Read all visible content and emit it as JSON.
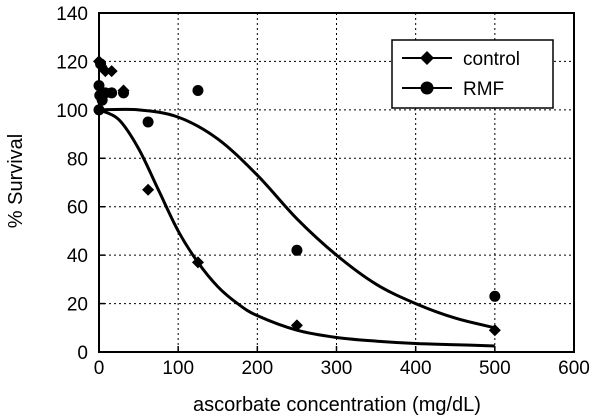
{
  "chart_data": {
    "type": "scatter",
    "xlabel": "ascorbate concentration  (mg/dL)",
    "ylabel": "% Survival",
    "xlim": [
      0,
      600
    ],
    "ylim": [
      0,
      140
    ],
    "x_ticks": [
      0,
      100,
      200,
      300,
      400,
      500,
      600
    ],
    "y_ticks": [
      0,
      20,
      40,
      60,
      80,
      100,
      120,
      140
    ],
    "x_tick_labels": [
      "0",
      "100",
      "200",
      "300",
      "400",
      "500",
      "600"
    ],
    "y_tick_labels": [
      "0",
      "20",
      "40",
      "60",
      "80",
      "100",
      "120",
      "140"
    ],
    "grid": true,
    "legend_position": "top-right",
    "series": [
      {
        "name": "control",
        "marker": "diamond",
        "points": [
          {
            "x": 0,
            "y": 120
          },
          {
            "x": 3,
            "y": 118
          },
          {
            "x": 8,
            "y": 116
          },
          {
            "x": 16,
            "y": 116
          },
          {
            "x": 31,
            "y": 108
          },
          {
            "x": 62,
            "y": 67
          },
          {
            "x": 125,
            "y": 37
          },
          {
            "x": 250,
            "y": 11
          },
          {
            "x": 500,
            "y": 9
          }
        ],
        "fit": [
          [
            0,
            100
          ],
          [
            25,
            96
          ],
          [
            50,
            84
          ],
          [
            75,
            67
          ],
          [
            100,
            50
          ],
          [
            125,
            37
          ],
          [
            150,
            27
          ],
          [
            175,
            20
          ],
          [
            200,
            15
          ],
          [
            250,
            9
          ],
          [
            300,
            6
          ],
          [
            350,
            4.5
          ],
          [
            400,
            3.5
          ],
          [
            450,
            3
          ],
          [
            500,
            2.5
          ]
        ]
      },
      {
        "name": "RMF",
        "marker": "circle",
        "points": [
          {
            "x": 0,
            "y": 100
          },
          {
            "x": 0,
            "y": 110
          },
          {
            "x": 1,
            "y": 106
          },
          {
            "x": 2,
            "y": 119
          },
          {
            "x": 4,
            "y": 104
          },
          {
            "x": 8,
            "y": 107
          },
          {
            "x": 16,
            "y": 107
          },
          {
            "x": 31,
            "y": 107
          },
          {
            "x": 62,
            "y": 95
          },
          {
            "x": 125,
            "y": 108
          },
          {
            "x": 250,
            "y": 42
          },
          {
            "x": 500,
            "y": 23
          }
        ],
        "fit": [
          [
            0,
            100
          ],
          [
            50,
            100
          ],
          [
            100,
            97
          ],
          [
            150,
            88
          ],
          [
            200,
            73
          ],
          [
            250,
            55
          ],
          [
            300,
            40
          ],
          [
            350,
            28
          ],
          [
            400,
            20
          ],
          [
            450,
            14
          ],
          [
            500,
            10
          ]
        ]
      }
    ]
  }
}
